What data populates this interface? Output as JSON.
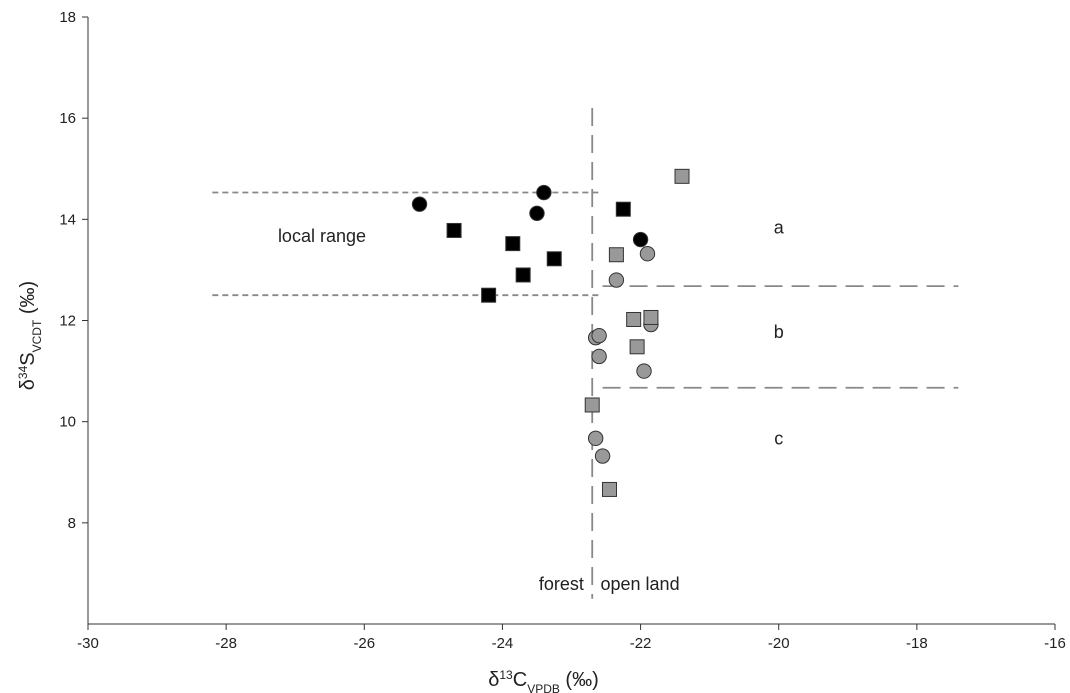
{
  "chart_data": {
    "type": "scatter",
    "title": "",
    "xlabel": {
      "main": "δ",
      "sup": "13",
      "sym": "C",
      "sub": "VPDB",
      "unit": " (‰)"
    },
    "ylabel": {
      "main": "δ",
      "sup": "34",
      "sym": "S",
      "sub": "VCDT",
      "unit": " (‰)"
    },
    "xlim": [
      -30,
      -16
    ],
    "ylim": [
      6,
      18
    ],
    "xticks": [
      "-30",
      "-28",
      "-26",
      "-24",
      "-22",
      "-20",
      "-18",
      "-16"
    ],
    "yticks": [
      "8",
      "10",
      "12",
      "14",
      "16",
      "18"
    ],
    "grid": false,
    "series": [
      {
        "marker": "circle",
        "fill": "#000000",
        "points": [
          [
            -25.2,
            14.3
          ],
          [
            -23.5,
            14.12
          ],
          [
            -23.4,
            14.53
          ],
          [
            -22.0,
            13.6
          ]
        ]
      },
      {
        "marker": "square",
        "fill": "#000000",
        "points": [
          [
            -24.7,
            13.78
          ],
          [
            -23.85,
            13.52
          ],
          [
            -23.7,
            12.9
          ],
          [
            -23.25,
            13.22
          ],
          [
            -24.2,
            12.5
          ],
          [
            -22.25,
            14.2
          ]
        ]
      },
      {
        "marker": "circle",
        "fill": "#999999",
        "points": [
          [
            -22.35,
            12.8
          ],
          [
            -21.9,
            13.32
          ],
          [
            -22.65,
            11.66
          ],
          [
            -22.6,
            11.7
          ],
          [
            -22.6,
            11.29
          ],
          [
            -21.85,
            11.92
          ],
          [
            -21.95,
            11.0
          ],
          [
            -22.65,
            9.67
          ],
          [
            -22.55,
            9.32
          ]
        ]
      },
      {
        "marker": "square",
        "fill": "#999999",
        "points": [
          [
            -21.4,
            14.85
          ],
          [
            -22.35,
            13.3
          ],
          [
            -22.1,
            12.02
          ],
          [
            -21.85,
            12.06
          ],
          [
            -22.05,
            11.48
          ],
          [
            -22.7,
            10.33
          ],
          [
            -22.45,
            8.66
          ]
        ]
      }
    ],
    "reference_lines": [
      {
        "orientation": "horizontal",
        "y": 14.53,
        "x_from": -28.2,
        "x_to": -22.6,
        "style": "short-dash"
      },
      {
        "orientation": "horizontal",
        "y": 12.5,
        "x_from": -28.2,
        "x_to": -22.6,
        "style": "short-dash"
      },
      {
        "orientation": "horizontal",
        "y": 12.68,
        "x_from": -22.55,
        "x_to": -17.4,
        "style": "long-dash"
      },
      {
        "orientation": "horizontal",
        "y": 10.67,
        "x_from": -22.55,
        "x_to": -17.4,
        "style": "long-dash"
      },
      {
        "orientation": "vertical",
        "x": -22.7,
        "y_from": 6.5,
        "y_to": 16.2,
        "style": "long-dash"
      }
    ],
    "annotations": [
      {
        "text": "local range",
        "x": -27.25,
        "y": 13.55,
        "anchor": "start"
      },
      {
        "text": "a",
        "x": -20.0,
        "y": 13.72,
        "anchor": "middle"
      },
      {
        "text": "b",
        "x": -20.0,
        "y": 11.65,
        "anchor": "middle"
      },
      {
        "text": "c",
        "x": -20.0,
        "y": 9.55,
        "anchor": "middle"
      },
      {
        "text": "forest",
        "x": -22.82,
        "y": 6.67,
        "anchor": "end"
      },
      {
        "text": "open land",
        "x": -22.58,
        "y": 6.67,
        "anchor": "start"
      }
    ]
  },
  "colors": {
    "axis": "#333333",
    "reference_line": "#888888",
    "marker_stroke": "#333333"
  }
}
